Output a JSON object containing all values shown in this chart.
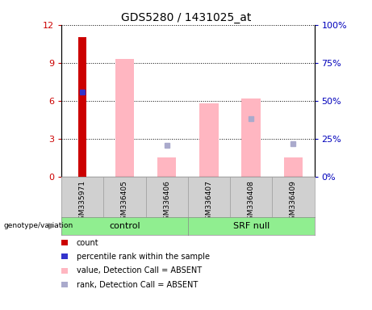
{
  "title": "GDS5280 / 1431025_at",
  "samples": [
    "GSM335971",
    "GSM336405",
    "GSM336406",
    "GSM336407",
    "GSM336408",
    "GSM336409"
  ],
  "group_spans": [
    [
      0,
      3,
      "control"
    ],
    [
      3,
      6,
      "SRF null"
    ]
  ],
  "ylim_left": [
    0,
    12
  ],
  "ylim_right": [
    0,
    100
  ],
  "yticks_left": [
    0,
    3,
    6,
    9,
    12
  ],
  "yticks_right": [
    0,
    25,
    50,
    75,
    100
  ],
  "ytick_labels_left": [
    "0",
    "3",
    "6",
    "9",
    "12"
  ],
  "ytick_labels_right": [
    "0%",
    "25%",
    "50%",
    "75%",
    "100%"
  ],
  "red_bar_values": [
    11.0,
    0,
    0,
    0,
    0,
    0
  ],
  "blue_dot_values_left": [
    6.7,
    0,
    0,
    0,
    0,
    0
  ],
  "pink_bar_values": [
    0,
    9.3,
    1.5,
    5.8,
    6.2,
    1.5
  ],
  "lavender_dot_values_left": [
    0,
    0,
    2.5,
    0,
    4.6,
    2.6
  ],
  "red_color": "#CC0000",
  "blue_color": "#3333CC",
  "pink_color": "#FFB6C1",
  "lavender_color": "#AAAACC",
  "green_color": "#90EE90",
  "gray_color": "#D0D0D0",
  "legend_items": [
    {
      "color": "#CC0000",
      "label": "count"
    },
    {
      "color": "#3333CC",
      "label": "percentile rank within the sample"
    },
    {
      "color": "#FFB6C1",
      "label": "value, Detection Call = ABSENT"
    },
    {
      "color": "#AAAACC",
      "label": "rank, Detection Call = ABSENT"
    }
  ],
  "group_label": "genotype/variation",
  "left_yaxis_color": "#CC0000",
  "right_yaxis_color": "#0000BB"
}
